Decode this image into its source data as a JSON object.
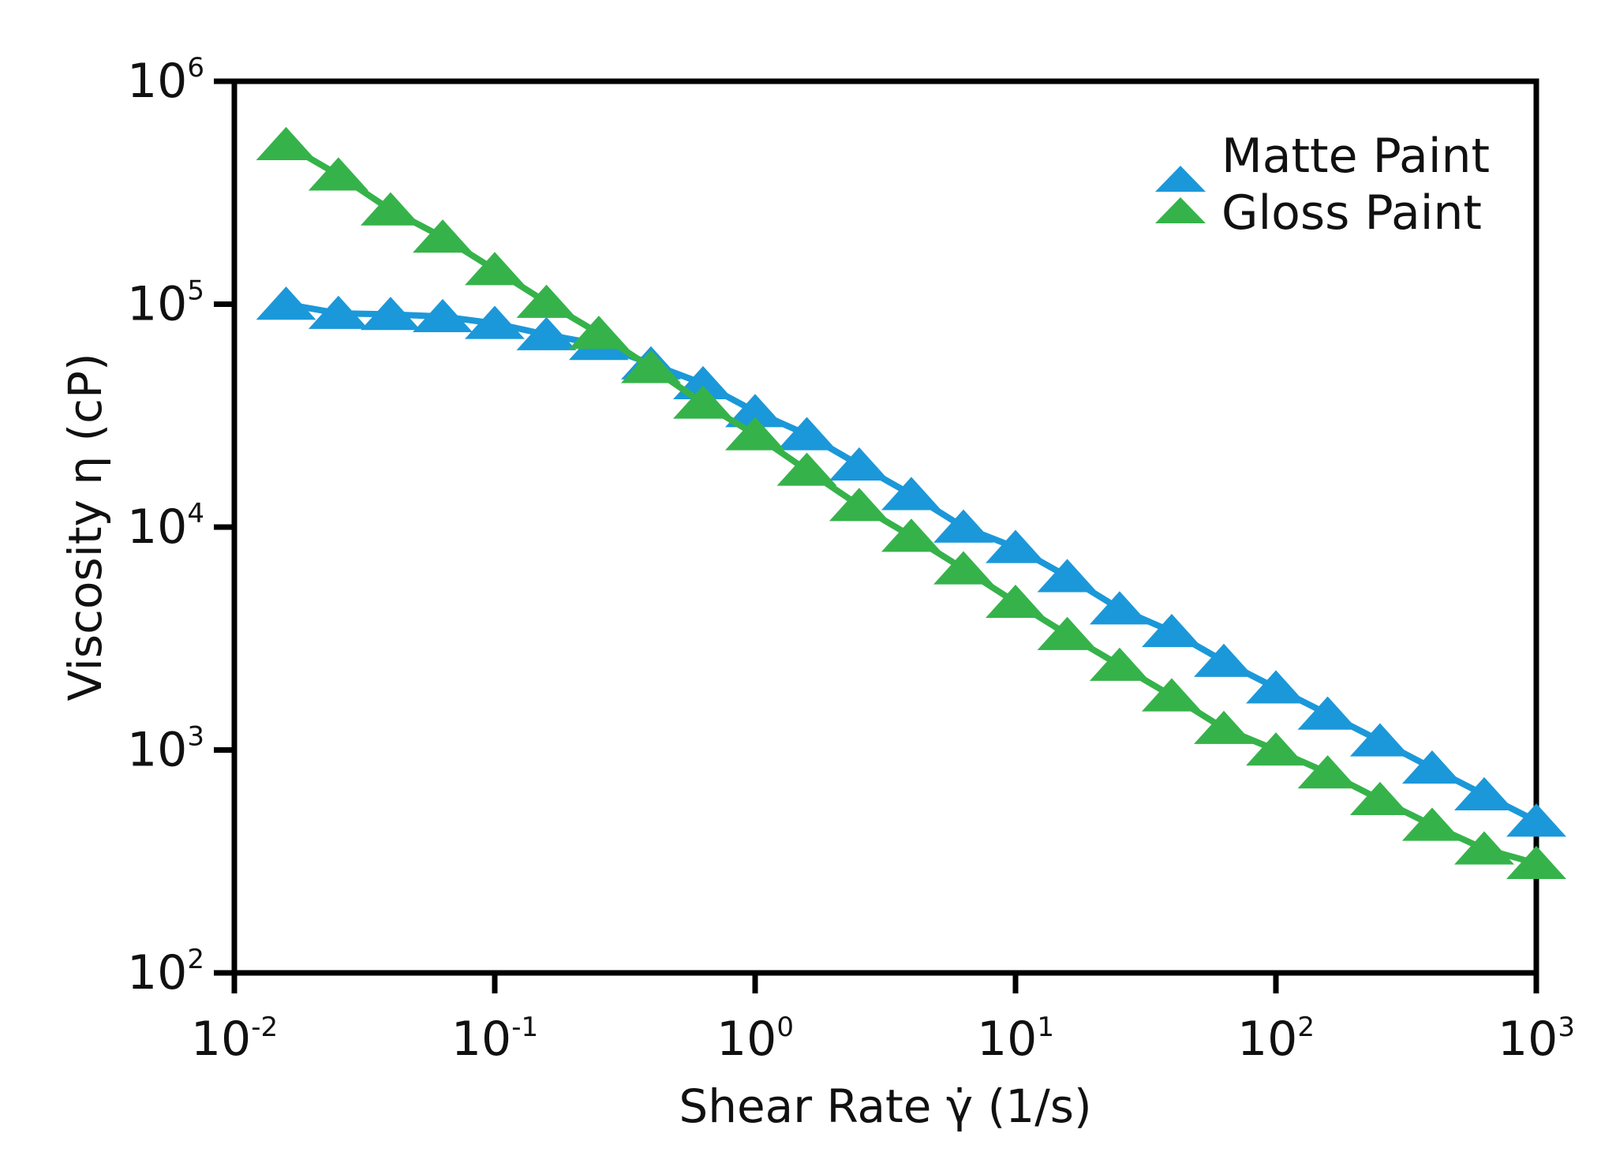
{
  "chart_data": {
    "type": "line",
    "title": "",
    "xlabel": "Shear Rate γ̇ (1/s)",
    "ylabel": "Viscosity η (cP)",
    "xscale": "log",
    "yscale": "log",
    "xlim": [
      0.01,
      1000
    ],
    "ylim": [
      100,
      1000000
    ],
    "grid": false,
    "legend_position": "top-right",
    "x_ticks": [
      {
        "base": "10",
        "exp": "-2",
        "value": 0.01
      },
      {
        "base": "10",
        "exp": "-1",
        "value": 0.1
      },
      {
        "base": "10",
        "exp": "0",
        "value": 1
      },
      {
        "base": "10",
        "exp": "1",
        "value": 10
      },
      {
        "base": "10",
        "exp": "2",
        "value": 100
      },
      {
        "base": "10",
        "exp": "3",
        "value": 1000
      }
    ],
    "y_ticks": [
      {
        "base": "10",
        "exp": "2",
        "value": 100
      },
      {
        "base": "10",
        "exp": "3",
        "value": 1000
      },
      {
        "base": "10",
        "exp": "4",
        "value": 10000
      },
      {
        "base": "10",
        "exp": "5",
        "value": 100000
      },
      {
        "base": "10",
        "exp": "6",
        "value": 1000000
      }
    ],
    "x": [
      0.0158,
      0.0251,
      0.0398,
      0.0631,
      0.1,
      0.158,
      0.251,
      0.398,
      0.631,
      1,
      1.58,
      2.51,
      3.98,
      6.31,
      10,
      15.8,
      25.1,
      39.8,
      63.1,
      100,
      158,
      251,
      398,
      631,
      1000
    ],
    "series": [
      {
        "name": "Matte Paint",
        "color": "#1b98d9",
        "marker": "triangle",
        "values": [
          100000,
          91000,
          90000,
          88000,
          82000,
          73000,
          66000,
          54000,
          44000,
          33000,
          26000,
          19000,
          14000,
          10000,
          8100,
          6000,
          4300,
          3400,
          2500,
          1900,
          1450,
          1100,
          830,
          630,
          480
        ]
      },
      {
        "name": "Gloss Paint",
        "color": "#35b34a",
        "marker": "triangle",
        "values": [
          520000,
          380000,
          265000,
          200000,
          143000,
          102000,
          74000,
          52000,
          36000,
          26000,
          18000,
          12500,
          9100,
          6500,
          4600,
          3300,
          2400,
          1750,
          1250,
          1000,
          790,
          600,
          460,
          360,
          310
        ]
      }
    ]
  }
}
